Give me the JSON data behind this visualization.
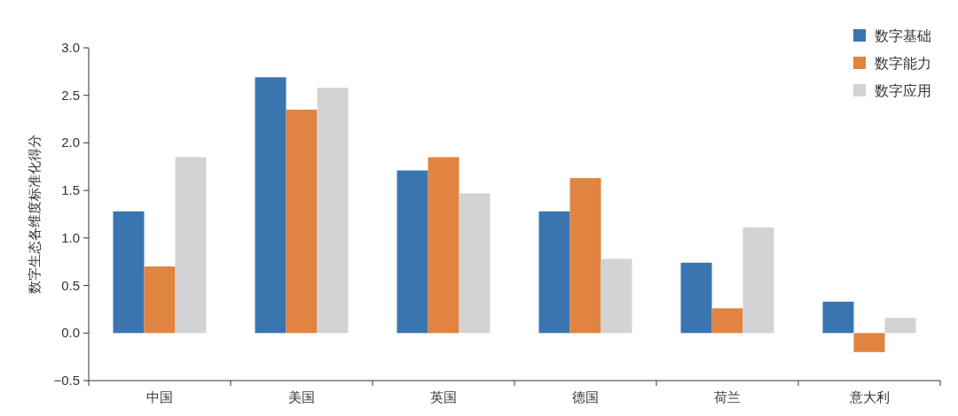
{
  "chart_data": {
    "type": "bar",
    "ylabel": "数字生态各维度标准化得分",
    "categories": [
      "中国",
      "美国",
      "英国",
      "德国",
      "荷兰",
      "意大利"
    ],
    "series": [
      {
        "name": "数字基础",
        "color": "#3a75b0",
        "values": [
          1.28,
          2.69,
          1.71,
          1.28,
          0.74,
          0.33
        ]
      },
      {
        "name": "数字能力",
        "color": "#e0843f",
        "values": [
          0.7,
          2.35,
          1.85,
          1.63,
          0.26,
          -0.2
        ]
      },
      {
        "name": "数字应用",
        "color": "#d3d3d5",
        "values": [
          1.85,
          2.58,
          1.47,
          0.78,
          1.11,
          0.16
        ]
      }
    ],
    "ylim": [
      -0.5,
      3.0
    ],
    "yticks": [
      {
        "value": -0.5,
        "label": "−0.5"
      },
      {
        "value": 0,
        "label": "0.0"
      },
      {
        "value": 0.5,
        "label": "0.5"
      },
      {
        "value": 1,
        "label": "1.0"
      },
      {
        "value": 1.5,
        "label": "1.5"
      },
      {
        "value": 2,
        "label": "2.0"
      },
      {
        "value": 2.5,
        "label": "2.5"
      },
      {
        "value": 3,
        "label": "3.0"
      }
    ],
    "grid": false,
    "legend": "top right"
  }
}
